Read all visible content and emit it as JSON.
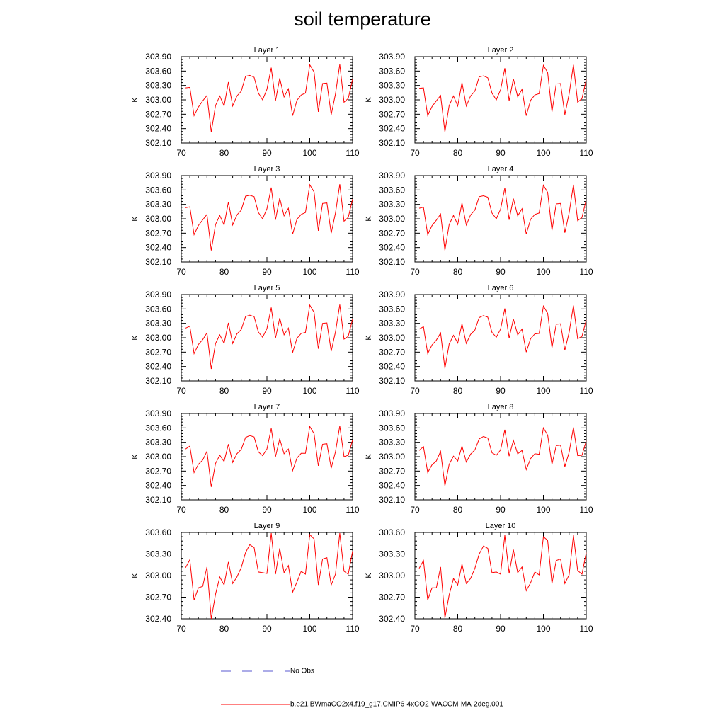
{
  "title": "soil temperature",
  "colors": {
    "model_line": "#ff0000",
    "obs_line": "#5a5ad2",
    "axis": "#000000"
  },
  "chart_data": {
    "type": "line",
    "xlim": [
      70,
      110
    ],
    "x_ticks": [
      70,
      80,
      90,
      100,
      110
    ],
    "x": [
      71,
      72,
      73,
      74,
      75,
      76,
      77,
      78,
      79,
      80,
      81,
      82,
      83,
      84,
      85,
      86,
      87,
      88,
      89,
      90,
      91,
      92,
      93,
      94,
      95,
      96,
      97,
      98,
      99,
      100,
      101,
      102,
      103,
      104,
      105,
      106,
      107,
      108,
      109,
      110
    ],
    "panels": [
      {
        "title": "Layer 1",
        "ylabel": "K",
        "ylim": [
          302.1,
          303.9
        ],
        "y_ticks": [
          "302.10",
          "302.40",
          "302.70",
          "303.00",
          "303.30",
          "303.60",
          "303.90"
        ],
        "values": [
          303.25,
          303.26,
          302.67,
          302.85,
          302.98,
          303.09,
          302.33,
          302.88,
          303.08,
          302.87,
          303.37,
          302.87,
          303.08,
          303.18,
          303.49,
          303.51,
          303.47,
          303.14,
          303.0,
          303.22,
          303.67,
          302.98,
          303.45,
          303.06,
          303.23,
          302.67,
          302.99,
          303.1,
          303.14,
          303.73,
          303.58,
          302.75,
          303.34,
          303.35,
          302.69,
          303.12,
          303.74,
          302.95,
          303.03,
          303.43
        ]
      },
      {
        "title": "Layer 2",
        "ylabel": "K",
        "ylim": [
          302.1,
          303.9
        ],
        "y_ticks": [
          "302.10",
          "302.40",
          "302.70",
          "303.00",
          "303.30",
          "303.60",
          "303.90"
        ],
        "values": [
          303.24,
          303.25,
          302.67,
          302.86,
          302.98,
          303.09,
          302.33,
          302.88,
          303.08,
          302.87,
          303.36,
          302.87,
          303.08,
          303.18,
          303.48,
          303.5,
          303.46,
          303.14,
          303.0,
          303.21,
          303.66,
          302.98,
          303.44,
          303.06,
          303.22,
          302.67,
          302.99,
          303.1,
          303.13,
          303.72,
          303.57,
          302.75,
          303.33,
          303.34,
          302.69,
          303.12,
          303.73,
          302.95,
          303.03,
          303.42
        ]
      },
      {
        "title": "Layer 3",
        "ylabel": "K",
        "ylim": [
          302.1,
          303.9
        ],
        "y_ticks": [
          "302.10",
          "302.40",
          "302.70",
          "303.00",
          "303.30",
          "303.60",
          "303.90"
        ],
        "values": [
          303.23,
          303.25,
          302.67,
          302.86,
          302.98,
          303.09,
          302.34,
          302.88,
          303.07,
          302.87,
          303.35,
          302.87,
          303.08,
          303.18,
          303.47,
          303.49,
          303.46,
          303.13,
          303.0,
          303.21,
          303.65,
          302.98,
          303.43,
          303.06,
          303.22,
          302.68,
          302.99,
          303.09,
          303.13,
          303.71,
          303.56,
          302.75,
          303.32,
          303.33,
          302.7,
          303.12,
          303.72,
          302.95,
          303.03,
          303.41
        ]
      },
      {
        "title": "Layer 4",
        "ylabel": "K",
        "ylim": [
          302.1,
          303.9
        ],
        "y_ticks": [
          "302.10",
          "302.40",
          "302.70",
          "303.00",
          "303.30",
          "303.60",
          "303.90"
        ],
        "values": [
          303.22,
          303.24,
          302.67,
          302.86,
          302.97,
          303.1,
          302.34,
          302.88,
          303.07,
          302.88,
          303.33,
          302.87,
          303.08,
          303.18,
          303.46,
          303.48,
          303.45,
          303.12,
          303.0,
          303.2,
          303.64,
          302.98,
          303.42,
          303.06,
          303.21,
          302.68,
          302.99,
          303.09,
          303.12,
          303.7,
          303.55,
          302.76,
          303.31,
          303.32,
          302.71,
          303.12,
          303.71,
          302.96,
          303.03,
          303.4
        ]
      },
      {
        "title": "Layer 5",
        "ylabel": "K",
        "ylim": [
          302.1,
          303.9
        ],
        "y_ticks": [
          "302.10",
          "302.40",
          "302.70",
          "303.00",
          "303.30",
          "303.60",
          "303.90"
        ],
        "values": [
          303.2,
          303.24,
          302.67,
          302.86,
          302.96,
          303.1,
          302.35,
          302.88,
          303.06,
          302.88,
          303.31,
          302.88,
          303.08,
          303.17,
          303.44,
          303.47,
          303.44,
          303.12,
          303.01,
          303.19,
          303.63,
          302.99,
          303.41,
          303.06,
          303.2,
          302.69,
          302.99,
          303.09,
          303.11,
          303.68,
          303.53,
          302.77,
          303.3,
          303.31,
          302.72,
          303.12,
          303.69,
          302.97,
          303.03,
          303.39
        ]
      },
      {
        "title": "Layer 6",
        "ylabel": "K",
        "ylim": [
          302.1,
          303.9
        ],
        "y_ticks": [
          "302.10",
          "302.40",
          "302.70",
          "303.00",
          "303.30",
          "303.60",
          "303.90"
        ],
        "values": [
          303.18,
          303.23,
          302.67,
          302.85,
          302.95,
          303.1,
          302.36,
          302.87,
          303.05,
          302.89,
          303.29,
          302.88,
          303.07,
          303.16,
          303.42,
          303.46,
          303.43,
          303.11,
          303.01,
          303.18,
          303.61,
          302.99,
          303.39,
          303.06,
          303.18,
          302.7,
          302.98,
          303.08,
          303.09,
          303.66,
          303.51,
          302.79,
          303.28,
          303.29,
          302.74,
          303.11,
          303.67,
          302.98,
          303.03,
          303.37
        ]
      },
      {
        "title": "Layer 7",
        "ylabel": "K",
        "ylim": [
          302.1,
          303.9
        ],
        "y_ticks": [
          "302.10",
          "302.40",
          "302.70",
          "303.00",
          "303.30",
          "303.60",
          "303.90"
        ],
        "values": [
          303.16,
          303.22,
          302.67,
          302.84,
          302.93,
          303.11,
          302.37,
          302.86,
          303.03,
          302.9,
          303.26,
          302.88,
          303.06,
          303.15,
          303.4,
          303.44,
          303.41,
          303.1,
          303.02,
          303.16,
          303.59,
          303.0,
          303.37,
          303.06,
          303.16,
          302.71,
          302.97,
          303.07,
          303.07,
          303.63,
          303.48,
          302.81,
          303.26,
          303.27,
          302.76,
          303.1,
          303.64,
          303.0,
          303.03,
          303.35
        ]
      },
      {
        "title": "Layer 8",
        "ylabel": "K",
        "ylim": [
          302.1,
          303.9
        ],
        "y_ticks": [
          "302.10",
          "302.40",
          "302.70",
          "303.00",
          "303.30",
          "303.60",
          "303.90"
        ],
        "values": [
          303.13,
          303.21,
          302.67,
          302.83,
          302.91,
          303.11,
          302.39,
          302.84,
          303.01,
          302.91,
          303.22,
          302.89,
          303.05,
          303.14,
          303.37,
          303.42,
          303.39,
          303.08,
          303.03,
          303.14,
          303.56,
          303.01,
          303.34,
          303.06,
          303.13,
          302.73,
          302.96,
          303.06,
          303.05,
          303.6,
          303.45,
          302.84,
          303.23,
          303.24,
          302.79,
          303.09,
          303.61,
          303.02,
          303.03,
          303.33
        ]
      },
      {
        "title": "Layer 9",
        "ylabel": "K",
        "ylim": [
          302.4,
          303.6
        ],
        "y_ticks": [
          "302.40",
          "302.70",
          "303.00",
          "303.30",
          "303.60"
        ],
        "values": [
          303.11,
          303.22,
          302.66,
          302.83,
          302.85,
          303.12,
          302.4,
          302.74,
          302.98,
          302.87,
          303.19,
          302.89,
          302.98,
          303.11,
          303.32,
          303.43,
          303.39,
          303.05,
          303.04,
          303.03,
          303.59,
          303.02,
          303.38,
          303.04,
          303.14,
          302.77,
          302.91,
          303.06,
          303.02,
          303.57,
          303.51,
          302.87,
          303.23,
          303.25,
          302.87,
          303.02,
          303.59,
          303.06,
          303.02,
          303.34
        ]
      },
      {
        "title": "Layer 10",
        "ylabel": "K",
        "ylim": [
          302.4,
          303.6
        ],
        "y_ticks": [
          "302.40",
          "302.70",
          "303.00",
          "303.30",
          "303.60"
        ],
        "values": [
          303.1,
          303.21,
          302.66,
          302.83,
          302.83,
          303.12,
          302.41,
          302.73,
          302.96,
          302.87,
          303.16,
          302.89,
          302.96,
          303.1,
          303.3,
          303.41,
          303.38,
          303.04,
          303.05,
          303.02,
          303.56,
          303.03,
          303.36,
          303.04,
          303.12,
          302.79,
          302.9,
          303.05,
          303.01,
          303.54,
          303.49,
          302.89,
          303.21,
          303.23,
          302.89,
          303.01,
          303.56,
          303.07,
          303.02,
          303.32
        ]
      }
    ]
  },
  "legend": {
    "obs_label": "No Obs",
    "model_label": "b.e21.BWmaCO2x4.f19_g17.CMIP6-4xCO2-WACCM-MA-2deg.001"
  }
}
